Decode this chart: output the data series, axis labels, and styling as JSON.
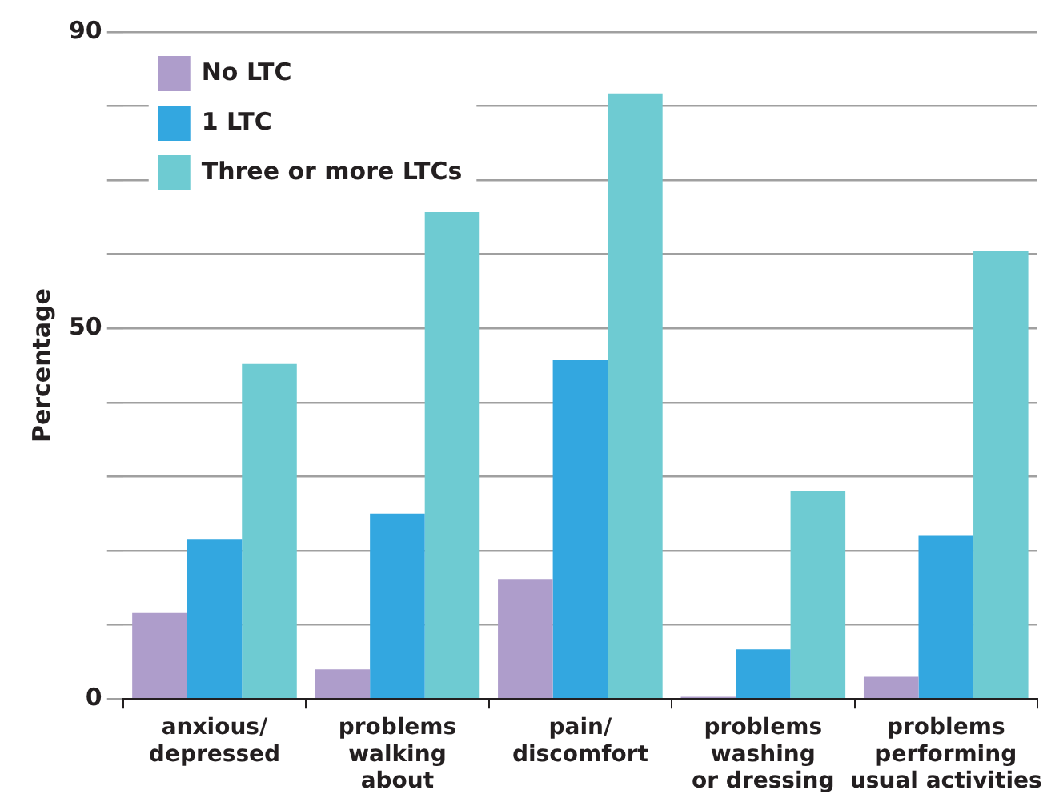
{
  "chart_data": {
    "type": "bar",
    "ylabel": "Percentage",
    "categories": [
      "anxious/\ndepressed",
      "problems\nwalking\nabout",
      "pain/\ndiscomfort",
      "problems\nwashing\nor dressing",
      "problems\nperforming\nusual activities"
    ],
    "series": [
      {
        "name": "No LTC",
        "color": "#ae9dcb",
        "values": [
          11.6,
          4.0,
          16.1,
          0.3,
          3.0
        ]
      },
      {
        "name": "1 LTC",
        "color": "#33a7e0",
        "values": [
          21.5,
          25.0,
          45.7,
          6.7,
          22.0
        ]
      },
      {
        "name": "Three or more LTCs",
        "color": "#6ecbd2",
        "values": [
          45.2,
          65.7,
          81.7,
          28.1,
          60.4
        ]
      }
    ],
    "ylim": [
      0,
      90
    ],
    "yticks": [
      0,
      {
        "value": 10,
        "label": null
      },
      {
        "value": 20,
        "label": null
      },
      {
        "value": 30,
        "label": null
      },
      {
        "value": 40,
        "label": null
      },
      50,
      {
        "value": 60,
        "label": null
      },
      {
        "value": 70,
        "label": null
      },
      {
        "value": 80,
        "label": null
      },
      90
    ],
    "grid": "y",
    "legend": "top left"
  }
}
